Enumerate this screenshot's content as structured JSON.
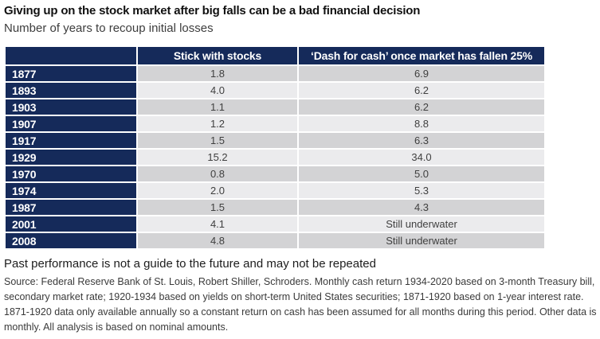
{
  "header": {
    "title": "Giving up on the stock market after big falls can be a bad financial decision",
    "subtitle": "Number of years to recoup initial losses"
  },
  "table": {
    "columns": [
      "",
      "Stick with stocks",
      "‘Dash for cash’ once market has fallen 25%"
    ],
    "rows": [
      {
        "year": "1877",
        "stick": "1.8",
        "dash": "6.9"
      },
      {
        "year": "1893",
        "stick": "4.0",
        "dash": "6.2"
      },
      {
        "year": "1903",
        "stick": "1.1",
        "dash": "6.2"
      },
      {
        "year": "1907",
        "stick": "1.2",
        "dash": "8.8"
      },
      {
        "year": "1917",
        "stick": "1.5",
        "dash": "6.3"
      },
      {
        "year": "1929",
        "stick": "15.2",
        "dash": "34.0"
      },
      {
        "year": "1970",
        "stick": "0.8",
        "dash": "5.0"
      },
      {
        "year": "1974",
        "stick": "2.0",
        "dash": "5.3"
      },
      {
        "year": "1987",
        "stick": "1.5",
        "dash": "4.3"
      },
      {
        "year": "2001",
        "stick": "4.1",
        "dash": "Still underwater"
      },
      {
        "year": "2008",
        "stick": "4.8",
        "dash": "Still underwater"
      }
    ]
  },
  "footer": {
    "disclaimer": "Past performance is not a guide to the future and may not be repeated",
    "source": "Source: Federal Reserve Bank of St. Louis, Robert Shiller, Schroders. Monthly cash return 1934-2020 based on 3-month Treasury bill, secondary market rate; 1920-1934 based on yields on short-term United States securities; 1871-1920 based on 1-year interest rate. 1871-1920 data only available annually so a constant return on cash has been assumed for all months during this period. Other data is monthly. All analysis is based on nominal amounts."
  },
  "colors": {
    "navy": "#152a5a",
    "row_dark": "#d3d3d5",
    "row_light": "#ebebed",
    "cell_text": "#404040",
    "header_text": "#ffffff"
  },
  "chart_data": {
    "type": "table",
    "title": "Giving up on the stock market after big falls can be a bad financial decision",
    "subtitle": "Number of years to recoup initial losses",
    "categories": [
      "1877",
      "1893",
      "1903",
      "1907",
      "1917",
      "1929",
      "1970",
      "1974",
      "1987",
      "2001",
      "2008"
    ],
    "series": [
      {
        "name": "Stick with stocks",
        "values": [
          1.8,
          4.0,
          1.1,
          1.2,
          1.5,
          15.2,
          0.8,
          2.0,
          1.5,
          4.1,
          4.8
        ]
      },
      {
        "name": "‘Dash for cash’ once market has fallen 25%",
        "values": [
          6.9,
          6.2,
          6.2,
          8.8,
          6.3,
          34.0,
          5.0,
          5.3,
          4.3,
          null,
          null
        ],
        "text_values": {
          "2001": "Still underwater",
          "2008": "Still underwater"
        }
      }
    ],
    "units": "years",
    "annotations": [
      "Past performance is not a guide to the future and may not be repeated"
    ]
  }
}
